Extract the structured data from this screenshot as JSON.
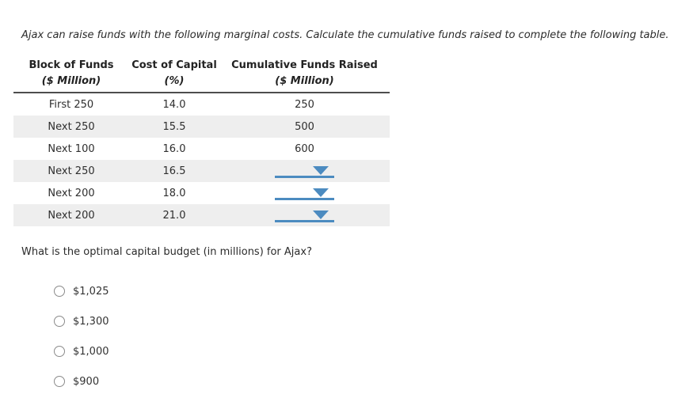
{
  "instruction": "Ajax can raise funds with the following marginal costs. Calculate the cumulative funds raised to complete the following table.",
  "table": {
    "headers": [
      {
        "line1": "Block of Funds",
        "line2": "($ Million)"
      },
      {
        "line1": "Cost of Capital",
        "line2": "(%)"
      },
      {
        "line1": "Cumulative Funds Raised",
        "line2": "($ Million)"
      }
    ],
    "rows": [
      {
        "block": "First 250",
        "cost": "14.0",
        "cumulative": "250"
      },
      {
        "block": "Next 250",
        "cost": "15.5",
        "cumulative": "500"
      },
      {
        "block": "Next 100",
        "cost": "16.0",
        "cumulative": "600"
      },
      {
        "block": "Next 250",
        "cost": "16.5",
        "cumulative": null
      },
      {
        "block": "Next 200",
        "cost": "18.0",
        "cumulative": null
      },
      {
        "block": "Next 200",
        "cost": "21.0",
        "cumulative": null
      }
    ]
  },
  "question": "What is the optimal capital budget (in millions) for Ajax?",
  "options": [
    "$1,025",
    "$1,300",
    "$1,000",
    "$900"
  ],
  "icons": {
    "dropdown": "caret-down-icon",
    "radio": "radio-button"
  },
  "colors": {
    "accent_blue": "#4c8bc0",
    "row_shade": "#eeeeee",
    "header_rule": "#4d4d4d",
    "text": "#333333",
    "background": "#ffffff"
  }
}
